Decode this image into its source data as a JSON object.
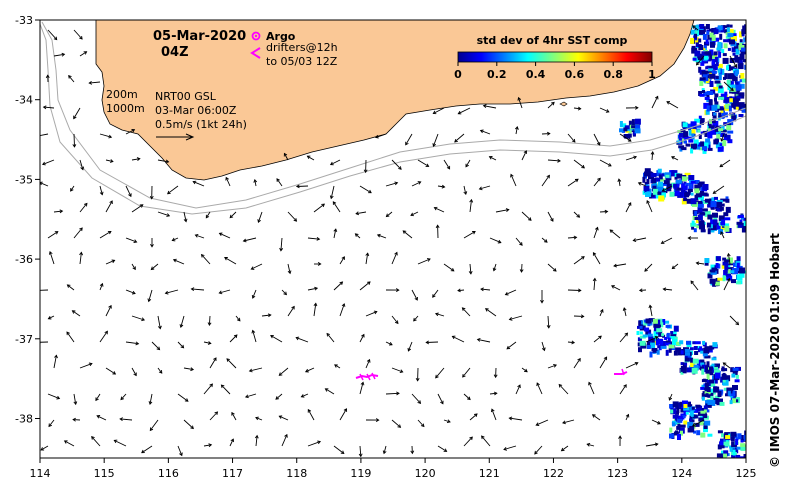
{
  "map": {
    "date": "05-Mar-2020",
    "time": "04Z",
    "argo_label": "Argo",
    "drifters_line1": "drifters@12h",
    "drifters_line2": "to 05/03 12Z",
    "isobath_200": "200m",
    "isobath_1000": "1000m",
    "product_line1": "NRT00 GSL",
    "product_line2": "03-Mar 06:00Z",
    "scale_label": "0.5m/s (1kt 24h)",
    "colorbar_title": "std dev of 4hr SST comp",
    "colorbar_ticks": [
      "0",
      "0.2",
      "0.4",
      "0.6",
      "0.8",
      "1"
    ],
    "credit": "©  IMOS 07-Mar-2020 01:09 Hobart",
    "lon_ticks": [
      "114",
      "115",
      "116",
      "117",
      "118",
      "119",
      "120",
      "121",
      "122",
      "123",
      "124",
      "125"
    ],
    "lat_ticks": [
      "-33",
      "-34",
      "-35",
      "-36",
      "-37",
      "-38"
    ],
    "colors": {
      "land": "#fac896",
      "argo": "#ff00ff",
      "drifter": "#ff00ff",
      "sst_low": "#00008f",
      "sst_mid": "#00ffff",
      "sst_high": "#ffff00",
      "sst_max": "#800000"
    }
  }
}
